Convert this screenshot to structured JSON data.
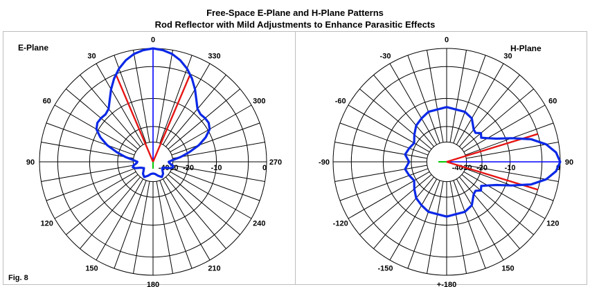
{
  "figure": {
    "title_line1": "Free-Space E-Plane and H-Plane Patterns",
    "title_line2": "Rod Reflector with Mild Adjustments to Enhance Parasitic Effects",
    "fig_label": "Fig. 8"
  },
  "colors": {
    "pattern": "#0a28e6",
    "beamwidth": "#e61414",
    "axis_blue": "#0000ff",
    "axis_green": "#00c800",
    "grid": "#000000"
  },
  "chart_data": [
    {
      "type": "polar",
      "title": "E-Plane",
      "radial_scale": "dB relative to maximum",
      "radial_ticks": [
        "0",
        "-10",
        "-20",
        "-30",
        "-40"
      ],
      "angle_labels": [
        "0",
        "30",
        "60",
        "90",
        "120",
        "150",
        "180",
        "210",
        "240",
        "270",
        "300",
        "330"
      ],
      "series": [
        {
          "color": "#0a28e6",
          "points": [
            [
              0,
              0
            ],
            [
              5,
              -0.2
            ],
            [
              10,
              -0.6
            ],
            [
              15,
              -1.3
            ],
            [
              20,
              -2.3
            ],
            [
              25,
              -3.6
            ],
            [
              30,
              -5.2
            ],
            [
              35,
              -7
            ],
            [
              40,
              -8.5
            ],
            [
              45,
              -9
            ],
            [
              50,
              -8.8
            ],
            [
              55,
              -8.8
            ],
            [
              60,
              -9.5
            ],
            [
              65,
              -11.5
            ],
            [
              70,
              -14.5
            ],
            [
              75,
              -19
            ],
            [
              80,
              -24
            ],
            [
              85,
              -30
            ],
            [
              90,
              -34
            ],
            [
              95,
              -33
            ],
            [
              100,
              -30
            ],
            [
              105,
              -29
            ],
            [
              110,
              -31
            ],
            [
              115,
              -36
            ],
            [
              125,
              -40
            ],
            [
              140,
              -34
            ],
            [
              150,
              -32
            ],
            [
              160,
              -35
            ],
            [
              170,
              -38
            ],
            [
              180,
              -39
            ],
            [
              190,
              -38
            ],
            [
              200,
              -35
            ],
            [
              210,
              -32
            ],
            [
              220,
              -34
            ],
            [
              235,
              -40
            ],
            [
              245,
              -36
            ],
            [
              250,
              -31
            ],
            [
              255,
              -29
            ],
            [
              260,
              -30
            ],
            [
              265,
              -33
            ],
            [
              270,
              -34
            ],
            [
              275,
              -30
            ],
            [
              280,
              -24
            ],
            [
              285,
              -19
            ],
            [
              290,
              -14.5
            ],
            [
              295,
              -11.5
            ],
            [
              300,
              -9.5
            ],
            [
              305,
              -8.8
            ],
            [
              310,
              -8.8
            ],
            [
              315,
              -9
            ],
            [
              320,
              -8.5
            ],
            [
              325,
              -7
            ],
            [
              330,
              -5.2
            ],
            [
              335,
              -3.6
            ],
            [
              340,
              -2.3
            ],
            [
              345,
              -1.3
            ],
            [
              350,
              -0.6
            ],
            [
              355,
              -0.2
            ]
          ]
        }
      ],
      "beamwidth_lines": [
        {
          "angle": 23,
          "db": -3
        },
        {
          "angle": 337,
          "db": -3
        }
      ]
    },
    {
      "type": "polar",
      "title": "H-Plane",
      "radial_scale": "dB relative to maximum",
      "radial_ticks": [
        "0",
        "-10",
        "-20",
        "-30",
        "-40"
      ],
      "angle_labels": [
        "0",
        "30",
        "60",
        "90",
        "120",
        "150",
        "+-180",
        "-150",
        "-120",
        "-90",
        "-60",
        "-30"
      ],
      "series": [
        {
          "color": "#0a28e6",
          "points": [
            [
              0,
              -12.5
            ],
            [
              10,
              -13
            ],
            [
              20,
              -13
            ],
            [
              30,
              -14
            ],
            [
              40,
              -17
            ],
            [
              45,
              -17.5
            ],
            [
              50,
              -16
            ],
            [
              55,
              -17
            ],
            [
              60,
              -15
            ],
            [
              65,
              -12.5
            ],
            [
              70,
              -8.5
            ],
            [
              75,
              -4.5
            ],
            [
              80,
              -2
            ],
            [
              85,
              -0.6
            ],
            [
              90,
              0
            ],
            [
              95,
              -0.6
            ],
            [
              100,
              -2
            ],
            [
              105,
              -4.5
            ],
            [
              110,
              -8.5
            ],
            [
              115,
              -12.5
            ],
            [
              120,
              -15
            ],
            [
              125,
              -17
            ],
            [
              130,
              -16
            ],
            [
              135,
              -17.5
            ],
            [
              140,
              -17
            ],
            [
              150,
              -14
            ],
            [
              160,
              -13
            ],
            [
              170,
              -13
            ],
            [
              180,
              -12.5
            ],
            [
              190,
              -13
            ],
            [
              200,
              -13
            ],
            [
              210,
              -14
            ],
            [
              220,
              -15
            ],
            [
              230,
              -17
            ],
            [
              240,
              -19
            ],
            [
              250,
              -18
            ],
            [
              260,
              -17
            ],
            [
              270,
              -19
            ],
            [
              280,
              -17
            ],
            [
              290,
              -18
            ],
            [
              300,
              -19
            ],
            [
              310,
              -17
            ],
            [
              320,
              -15
            ],
            [
              330,
              -14
            ],
            [
              340,
              -13
            ],
            [
              350,
              -13
            ]
          ]
        }
      ],
      "beamwidth_lines": [
        {
          "angle": 73,
          "db": -3
        },
        {
          "angle": 107,
          "db": -3
        }
      ]
    }
  ]
}
